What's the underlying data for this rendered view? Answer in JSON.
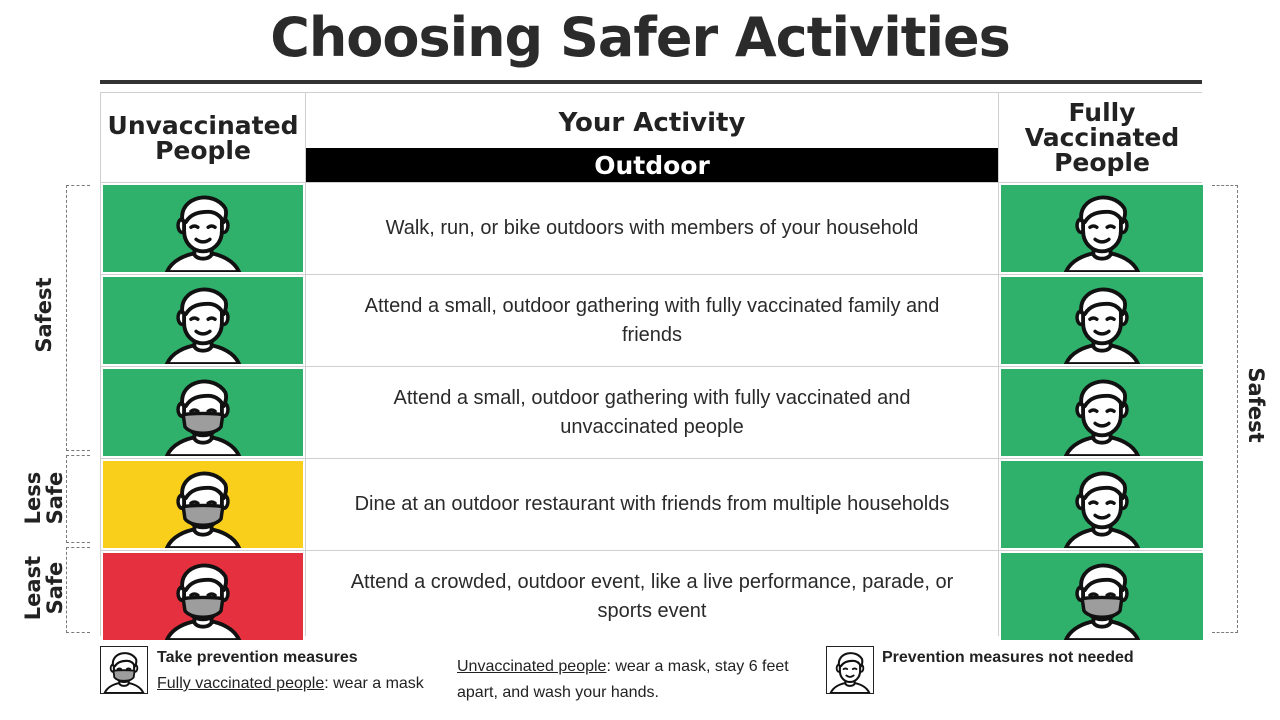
{
  "title": "Choosing Safer Activities",
  "headers": {
    "left": "Unvaccinated People",
    "center": "Your Activity",
    "center_sub": "Outdoor",
    "right": "Fully Vaccinated People"
  },
  "rows": [
    {
      "activity": "Walk, run, or bike outdoors with members of your household",
      "unvaccinated": {
        "color": "#2fb06b",
        "masked": false
      },
      "vaccinated": {
        "color": "#2fb06b",
        "masked": false
      }
    },
    {
      "activity": "Attend a small, outdoor gathering with fully vaccinated family and friends",
      "unvaccinated": {
        "color": "#2fb06b",
        "masked": false
      },
      "vaccinated": {
        "color": "#2fb06b",
        "masked": false
      }
    },
    {
      "activity": "Attend a small, outdoor gathering with fully vaccinated and unvaccinated people",
      "unvaccinated": {
        "color": "#2fb06b",
        "masked": true
      },
      "vaccinated": {
        "color": "#2fb06b",
        "masked": false
      }
    },
    {
      "activity": "Dine at an outdoor restaurant with friends from multiple households",
      "unvaccinated": {
        "color": "#f9cf1c",
        "masked": true
      },
      "vaccinated": {
        "color": "#2fb06b",
        "masked": false
      }
    },
    {
      "activity": "Attend a crowded, outdoor event, like a live performance, parade, or sports event",
      "unvaccinated": {
        "color": "#e5313f",
        "masked": true
      },
      "vaccinated": {
        "color": "#2fb06b",
        "masked": true
      }
    }
  ],
  "side_labels": {
    "left_safest": "Safest",
    "left_less_safe_1": "Less",
    "left_less_safe_2": "Safe",
    "left_least_safe_1": "Least",
    "left_least_safe_2": "Safe",
    "right_safest": "Safest"
  },
  "legend": {
    "take_prevention": "Take prevention measures",
    "fully_vaccinated_label": "Fully vaccinated people",
    "fully_vaccinated_text": ": wear a mask",
    "unvaccinated_label": "Unvaccinated people",
    "unvaccinated_text_1": ": wear a mask, stay 6 feet",
    "unvaccinated_text_2": "apart, and wash your hands.",
    "not_needed": "Prevention measures not needed"
  },
  "icons": {
    "face": "person-face-icon",
    "masked_face": "masked-face-icon"
  }
}
